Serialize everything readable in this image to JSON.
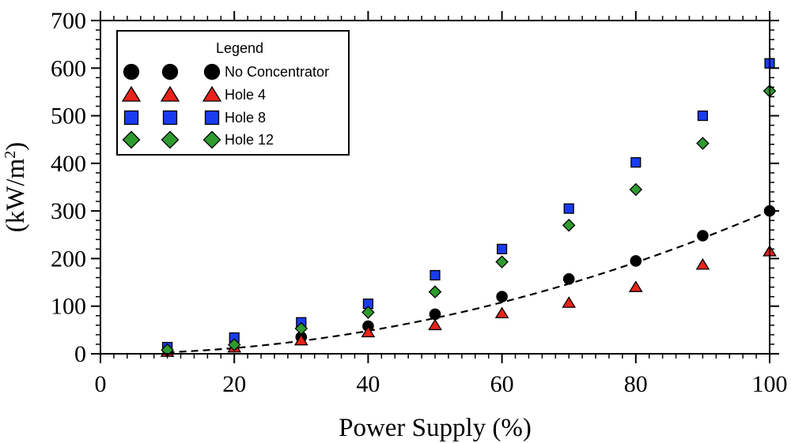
{
  "chart_data": {
    "type": "scatter",
    "title": "",
    "xlabel": "Power Supply (%)",
    "ylabel_main": "(kW/m",
    "ylabel_sup": "2",
    "ylabel_close": ")",
    "xlim": [
      0,
      100
    ],
    "ylim": [
      0,
      700
    ],
    "x_ticks": [
      0,
      20,
      40,
      60,
      80,
      100
    ],
    "y_ticks": [
      0,
      100,
      200,
      300,
      400,
      500,
      600,
      700
    ],
    "legend": {
      "title": "Legend",
      "placement": "top-left"
    },
    "series": [
      {
        "name": "No Concentrator",
        "marker": "circle",
        "color": "#000000",
        "x": [
          30,
          40,
          50,
          60,
          70,
          80,
          90,
          100
        ],
        "y": [
          35,
          58,
          83,
          120,
          157,
          195,
          248,
          300
        ]
      },
      {
        "name": "Hole 4",
        "marker": "triangle",
        "color": "#e8231a",
        "x": [
          10,
          20,
          30,
          40,
          50,
          60,
          70,
          80,
          90,
          100
        ],
        "y": [
          4,
          13,
          28,
          45,
          60,
          85,
          107,
          140,
          187,
          215
        ]
      },
      {
        "name": "Hole 8",
        "marker": "square",
        "color": "#1a3cf0",
        "x": [
          10,
          20,
          30,
          40,
          50,
          60,
          70,
          80,
          90,
          100
        ],
        "y": [
          14,
          34,
          66,
          105,
          165,
          220,
          305,
          402,
          500,
          610
        ]
      },
      {
        "name": "Hole 12",
        "marker": "diamond",
        "color": "#2e9b2e",
        "x": [
          10,
          20,
          30,
          40,
          50,
          60,
          70,
          80,
          90,
          100
        ],
        "y": [
          8,
          19,
          53,
          87,
          130,
          193,
          270,
          345,
          442,
          552
        ]
      }
    ],
    "fit_line": {
      "name": "fit",
      "style": "dashed",
      "color": "#000000",
      "x_start": 10,
      "x_end": 100,
      "coefficient": 0.03
    }
  }
}
